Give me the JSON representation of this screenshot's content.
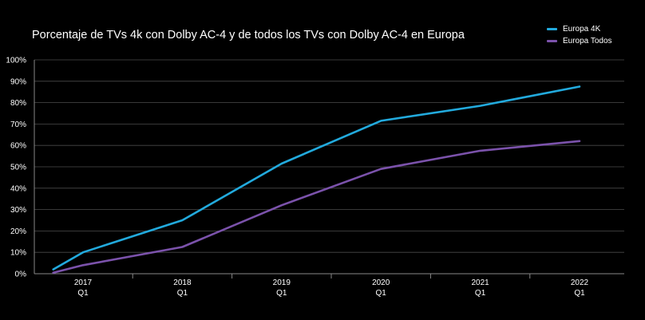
{
  "chart_data": {
    "type": "line",
    "title": "Porcentaje de TVs 4k con Dolby AC-4 y de todos los TVs con Dolby AC-4 en Europa",
    "xlabel": "",
    "ylabel": "",
    "categories": [
      [
        "2017",
        "Q1"
      ],
      [
        "2018",
        "Q1"
      ],
      [
        "2019",
        "Q1"
      ],
      [
        "2020",
        "Q1"
      ],
      [
        "2021",
        "Q1"
      ],
      [
        "2022",
        "Q1"
      ]
    ],
    "x": [
      2016.7,
      2017.0,
      2018.0,
      2019.0,
      2020.0,
      2021.0,
      2022.0
    ],
    "series": [
      {
        "name": "Europa 4K",
        "color": "#22aadd",
        "values": [
          2,
          10,
          25,
          51.5,
          71.5,
          78.5,
          87.5
        ]
      },
      {
        "name": "Europa Todos",
        "color": "#7b52ab",
        "values": [
          0.5,
          4,
          12.5,
          32,
          49,
          57.5,
          62
        ]
      }
    ],
    "ylim": [
      0,
      100
    ],
    "yticks": [
      "0%",
      "10%",
      "20%",
      "30%",
      "40%",
      "50%",
      "60%",
      "70%",
      "80%",
      "90%",
      "100%"
    ],
    "grid": true,
    "legend_position": "top-right"
  }
}
